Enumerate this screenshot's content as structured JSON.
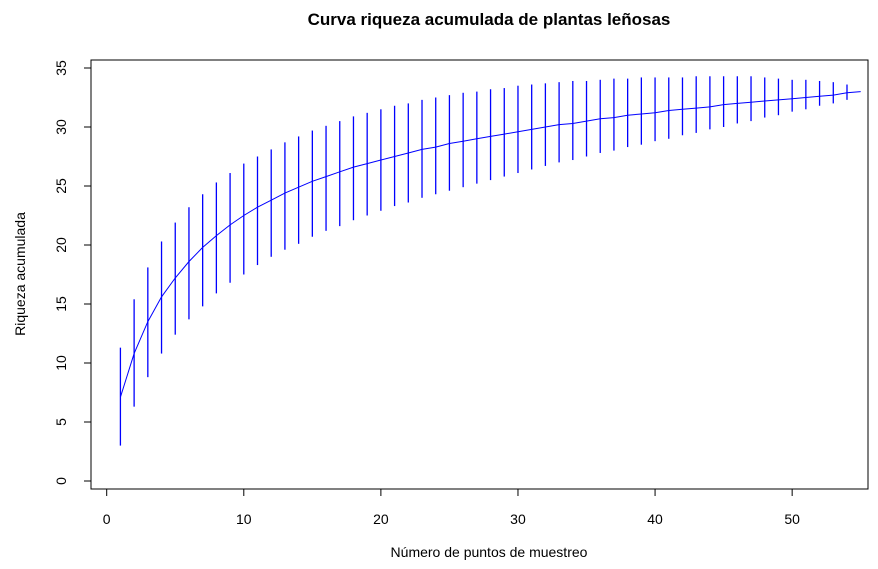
{
  "chart_data": {
    "type": "line",
    "title": "Curva riqueza acumulada de plantas leñosas",
    "xlabel": "Número de puntos de muestreo",
    "ylabel": "Riqueza acumulada",
    "xlim": [
      0,
      55
    ],
    "ylim": [
      0,
      35
    ],
    "xticks": [
      0,
      10,
      20,
      30,
      40,
      50
    ],
    "yticks": [
      0,
      5,
      10,
      15,
      20,
      25,
      30,
      35
    ],
    "grid": false,
    "colors": {
      "series": "#0000ff",
      "axes": "#000000"
    },
    "series": [
      {
        "x": [
          1,
          2,
          3,
          4,
          5,
          6,
          7,
          8,
          9,
          10,
          11,
          12,
          13,
          14,
          15,
          16,
          17,
          18,
          19,
          20,
          21,
          22,
          23,
          24,
          25,
          26,
          27,
          28,
          29,
          30,
          31,
          32,
          33,
          34,
          35,
          36,
          37,
          38,
          39,
          40,
          41,
          42,
          43,
          44,
          45,
          46,
          47,
          48,
          49,
          50,
          51,
          52,
          53,
          54,
          55
        ],
        "y": [
          7.1,
          10.8,
          13.5,
          15.6,
          17.2,
          18.6,
          19.8,
          20.8,
          21.7,
          22.5,
          23.2,
          23.8,
          24.4,
          24.9,
          25.4,
          25.8,
          26.2,
          26.6,
          26.9,
          27.2,
          27.5,
          27.8,
          28.1,
          28.3,
          28.6,
          28.8,
          29.0,
          29.2,
          29.4,
          29.6,
          29.8,
          30.0,
          30.2,
          30.3,
          30.5,
          30.7,
          30.8,
          31.0,
          31.1,
          31.2,
          31.4,
          31.5,
          31.6,
          31.7,
          31.9,
          32.0,
          32.1,
          32.2,
          32.3,
          32.4,
          32.5,
          32.6,
          32.7,
          32.9,
          33.0
        ],
        "err_low": [
          3.0,
          6.3,
          8.8,
          10.8,
          12.4,
          13.7,
          14.8,
          15.9,
          16.8,
          17.5,
          18.3,
          19.0,
          19.6,
          20.1,
          20.7,
          21.2,
          21.6,
          22.1,
          22.5,
          22.9,
          23.3,
          23.6,
          24.0,
          24.3,
          24.6,
          24.9,
          25.2,
          25.5,
          25.8,
          26.1,
          26.4,
          26.7,
          27.0,
          27.2,
          27.5,
          27.8,
          28.0,
          28.3,
          28.5,
          28.8,
          29.0,
          29.3,
          29.5,
          29.8,
          30.0,
          30.3,
          30.5,
          30.8,
          31.0,
          31.3,
          31.5,
          31.8,
          32.0,
          32.3,
          33.0
        ],
        "err_high": [
          11.3,
          15.4,
          18.1,
          20.3,
          21.9,
          23.2,
          24.3,
          25.3,
          26.1,
          26.9,
          27.5,
          28.1,
          28.7,
          29.2,
          29.7,
          30.1,
          30.5,
          30.9,
          31.2,
          31.5,
          31.8,
          32.0,
          32.3,
          32.5,
          32.7,
          32.9,
          33.0,
          33.2,
          33.3,
          33.5,
          33.6,
          33.7,
          33.8,
          33.9,
          33.9,
          34.0,
          34.1,
          34.1,
          34.2,
          34.2,
          34.2,
          34.2,
          34.3,
          34.3,
          34.3,
          34.3,
          34.3,
          34.2,
          34.1,
          34.0,
          34.0,
          33.9,
          33.8,
          33.6,
          33.0
        ]
      }
    ]
  }
}
